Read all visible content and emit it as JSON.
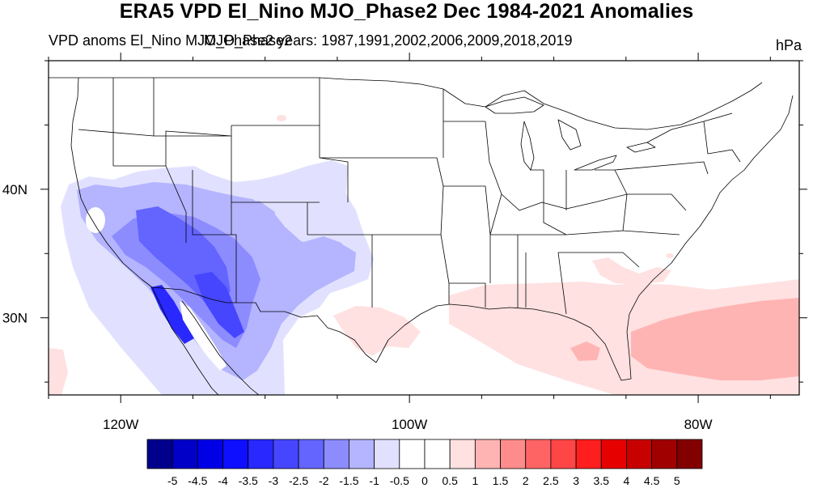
{
  "figure": {
    "title": "ERA5 VPD El_Nino MJO_Phase2 Dec 1984-2021 Anomalies",
    "subtitle_left": "VPD anoms El_Nino MJO_Phase2 years: 1987,1991,2002,2006,2009,2018,2019",
    "subtitle_overlap": "MJO_Phase2",
    "units": "hPa"
  },
  "axes": {
    "x_ticks": [
      {
        "value": -120,
        "label": "120W"
      },
      {
        "value": -100,
        "label": "100W"
      },
      {
        "value": -80,
        "label": "80W"
      }
    ],
    "y_ticks": [
      {
        "value": 40,
        "label": "40N"
      },
      {
        "value": 30,
        "label": "30N"
      }
    ],
    "lon_range": [
      -125,
      -73
    ],
    "lat_range": [
      24,
      50
    ]
  },
  "colorbar": {
    "labels": [
      "-5",
      "-4.5",
      "-4",
      "-3.5",
      "-3",
      "-2.5",
      "-2",
      "-1.5",
      "-1",
      "-0.5",
      "0",
      "0.5",
      "1",
      "1.5",
      "2",
      "2.5",
      "3",
      "3.5",
      "4",
      "4.5",
      "5"
    ],
    "colors": [
      "#00008c",
      "#0000c8",
      "#0000e6",
      "#0f0fff",
      "#2828ff",
      "#4646ff",
      "#6464ff",
      "#8c8cff",
      "#b4b4ff",
      "#e1e1ff",
      "#ffffff",
      "#ffffff",
      "#ffe1e1",
      "#ffb4b4",
      "#ff8c8c",
      "#ff6464",
      "#ff4646",
      "#ff1e1e",
      "#e60000",
      "#c80000",
      "#a00000",
      "#820000"
    ]
  },
  "colors": {
    "neg_light": "#e1e1ff",
    "neg_med": "#b4b4ff",
    "neg_strong": "#8c8cff",
    "neg_stronger": "#6464ff",
    "neg_strongest": "#2828ff",
    "pos_light": "#ffe1e1",
    "pos_med": "#ffb4b4"
  }
}
